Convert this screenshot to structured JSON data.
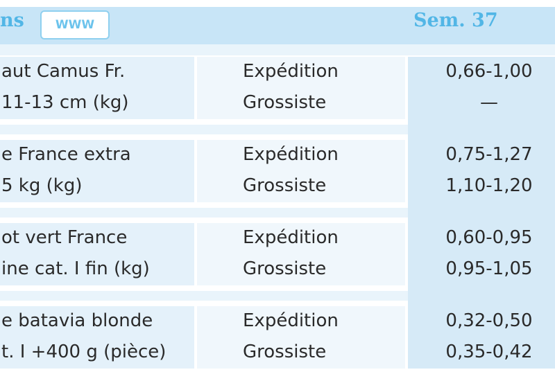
{
  "header": {
    "title": "ns",
    "badge": "WWW",
    "week": "Sem. 37"
  },
  "rows": [
    {
      "product": [
        "aut Camus Fr.",
        "11-13 cm (kg)"
      ],
      "types": [
        "Expédition",
        "Grossiste"
      ],
      "prices": [
        "0,66-1,00",
        "—"
      ]
    },
    {
      "product": [
        "e France extra",
        "5 kg (kg)"
      ],
      "types": [
        "Expédition",
        "Grossiste"
      ],
      "prices": [
        "0,75-1,27",
        "1,10-1,20"
      ]
    },
    {
      "product": [
        "ot vert France",
        "ine cat. I fin (kg)"
      ],
      "types": [
        "Expédition",
        "Grossiste"
      ],
      "prices": [
        "0,60-0,95",
        "0,95-1,05"
      ]
    },
    {
      "product": [
        "e batavia blonde",
        "t. I +400 g (pièce)"
      ],
      "types": [
        "Expédition",
        "Grossiste"
      ],
      "prices": [
        "0,32-0,50",
        "0,35-0,42"
      ]
    }
  ]
}
